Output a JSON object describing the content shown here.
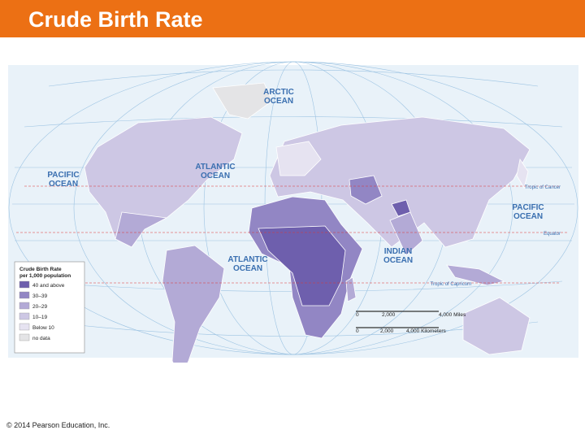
{
  "header": {
    "title": "Crude Birth Rate"
  },
  "map": {
    "oceans": [
      {
        "lines": [
          "ARCTIC",
          "OCEAN"
        ]
      },
      {
        "lines": [
          "PACIFIC",
          "OCEAN"
        ]
      },
      {
        "lines": [
          "ATLANTIC",
          "OCEAN"
        ]
      },
      {
        "lines": [
          "ATLANTIC",
          "OCEAN"
        ]
      },
      {
        "lines": [
          "INDIAN",
          "OCEAN"
        ]
      },
      {
        "lines": [
          "PACIFIC",
          "OCEAN"
        ]
      }
    ],
    "reference_lines": [
      "Tropic of Cancer",
      "Equator",
      "Tropic of Capricorn"
    ],
    "legend": {
      "title": [
        "Crude Birth Rate",
        "per 1,000 population"
      ],
      "items": [
        {
          "label": "40 and above",
          "color": "#6e5fad"
        },
        {
          "label": "30–39",
          "color": "#9286c4"
        },
        {
          "label": "20–29",
          "color": "#b3aad6"
        },
        {
          "label": "10–19",
          "color": "#cdc7e4"
        },
        {
          "label": "Below 10",
          "color": "#e6e3f1"
        },
        {
          "label": "no data",
          "color": "#e4e4e6"
        }
      ]
    },
    "scale": {
      "miles": [
        "0",
        "2,000",
        "4,000 Miles"
      ],
      "kilometers": [
        "0",
        "2,000",
        "4,000 Kilometers"
      ]
    }
  },
  "footer": {
    "copyright": "© 2014 Pearson Education, Inc."
  }
}
